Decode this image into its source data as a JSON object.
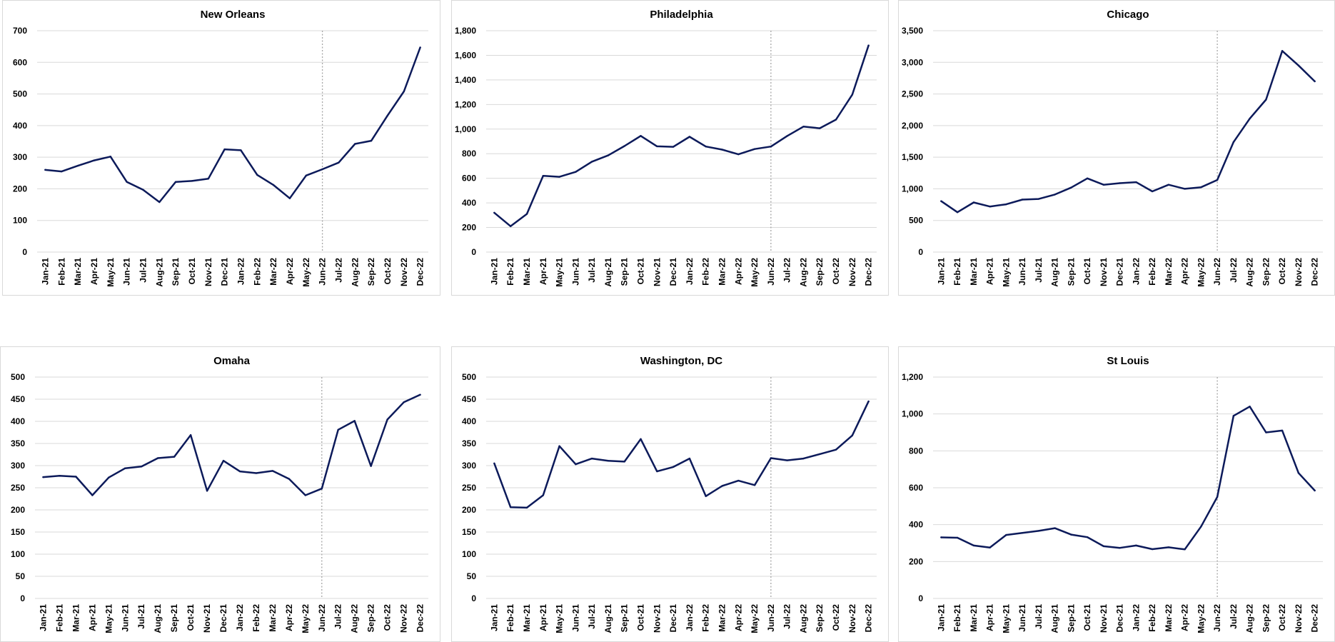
{
  "series_color": "#0c1a5a",
  "x_labels": [
    "Jan-21",
    "Feb-21",
    "Mar-21",
    "Apr-21",
    "May-21",
    "Jun-21",
    "Jul-21",
    "Aug-21",
    "Sep-21",
    "Oct-21",
    "Nov-21",
    "Dec-21",
    "Jan-22",
    "Feb-22",
    "Mar-22",
    "Apr-22",
    "May-22",
    "Jun-22",
    "Jul-22",
    "Aug-22",
    "Sep-22",
    "Oct-22",
    "Nov-22",
    "Dec-22"
  ],
  "chart_data": [
    {
      "type": "line",
      "title": "New Orleans",
      "categories": [
        "Jan-21",
        "Feb-21",
        "Mar-21",
        "Apr-21",
        "May-21",
        "Jun-21",
        "Jul-21",
        "Aug-21",
        "Sep-21",
        "Oct-21",
        "Nov-21",
        "Dec-21",
        "Jan-22",
        "Feb-22",
        "Mar-22",
        "Apr-22",
        "May-22",
        "Jun-22",
        "Jul-22",
        "Aug-22",
        "Sep-22",
        "Oct-22",
        "Nov-22",
        "Dec-22"
      ],
      "values": [
        260,
        255,
        273,
        290,
        302,
        222,
        197,
        158,
        222,
        225,
        232,
        325,
        322,
        244,
        212,
        170,
        242,
        262,
        283,
        342,
        352,
        432,
        508,
        647
      ],
      "ylim": [
        0,
        700
      ],
      "yticks": [
        "0",
        "100",
        "200",
        "300",
        "400",
        "500",
        "600",
        "700"
      ],
      "reference_line_at": "Jun-22",
      "grid": true
    },
    {
      "type": "line",
      "title": "Philadelphia",
      "categories": [
        "Jan-21",
        "Feb-21",
        "Mar-21",
        "Apr-21",
        "May-21",
        "Jun-21",
        "Jul-21",
        "Aug-21",
        "Sep-21",
        "Oct-21",
        "Nov-21",
        "Dec-21",
        "Jan-22",
        "Feb-22",
        "Mar-22",
        "Apr-22",
        "May-22",
        "Jun-22",
        "Jul-22",
        "Aug-22",
        "Sep-22",
        "Oct-22",
        "Nov-22",
        "Dec-22"
      ],
      "values": [
        320,
        210,
        310,
        620,
        612,
        652,
        735,
        786,
        862,
        945,
        860,
        856,
        938,
        858,
        833,
        795,
        838,
        858,
        944,
        1020,
        1007,
        1077,
        1280,
        1680
      ],
      "ylim": [
        0,
        1800
      ],
      "yticks": [
        "0",
        "200",
        "400",
        "600",
        "800",
        "1,000",
        "1,200",
        "1,400",
        "1,600",
        "1,800"
      ],
      "reference_line_at": "Jun-22",
      "grid": true
    },
    {
      "type": "line",
      "title": "Chicago",
      "categories": [
        "Jan-21",
        "Feb-21",
        "Mar-21",
        "Apr-21",
        "May-21",
        "Jun-21",
        "Jul-21",
        "Aug-21",
        "Sep-21",
        "Oct-21",
        "Nov-21",
        "Dec-21",
        "Jan-22",
        "Feb-22",
        "Mar-22",
        "Apr-22",
        "May-22",
        "Jun-22",
        "Jul-22",
        "Aug-22",
        "Sep-22",
        "Oct-22",
        "Nov-22",
        "Dec-22"
      ],
      "values": [
        805,
        630,
        785,
        720,
        755,
        830,
        840,
        910,
        1020,
        1165,
        1065,
        1090,
        1105,
        960,
        1065,
        1000,
        1025,
        1140,
        1740,
        2110,
        2410,
        3180,
        2950,
        2700
      ],
      "ylim": [
        0,
        3500
      ],
      "yticks": [
        "0",
        "500",
        "1,000",
        "1,500",
        "2,000",
        "2,500",
        "3,000",
        "3,500"
      ],
      "reference_line_at": "Jun-22",
      "grid": true
    },
    {
      "type": "line",
      "title": "Omaha",
      "categories": [
        "Jan-21",
        "Feb-21",
        "Mar-21",
        "Apr-21",
        "May-21",
        "Jun-21",
        "Jul-21",
        "Aug-21",
        "Sep-21",
        "Oct-21",
        "Nov-21",
        "Dec-21",
        "Jan-22",
        "Feb-22",
        "Mar-22",
        "Apr-22",
        "May-22",
        "Jun-22",
        "Jul-22",
        "Aug-22",
        "Sep-22",
        "Oct-22",
        "Nov-22",
        "Dec-22"
      ],
      "values": [
        274,
        277,
        275,
        233,
        273,
        294,
        298,
        317,
        320,
        369,
        243,
        311,
        287,
        283,
        288,
        270,
        233,
        248,
        381,
        401,
        299,
        404,
        443,
        460
      ],
      "ylim": [
        0,
        500
      ],
      "yticks": [
        "0",
        "50",
        "100",
        "150",
        "200",
        "250",
        "300",
        "350",
        "400",
        "450",
        "500"
      ],
      "reference_line_at": "Jun-22",
      "grid": true
    },
    {
      "type": "line",
      "title": "Washington, DC",
      "categories": [
        "Jan-21",
        "Feb-21",
        "Mar-21",
        "Apr-21",
        "May-21",
        "Jun-21",
        "Jul-21",
        "Aug-21",
        "Sep-21",
        "Oct-21",
        "Nov-21",
        "Dec-21",
        "Jan-22",
        "Feb-22",
        "Mar-22",
        "Apr-22",
        "May-22",
        "Jun-22",
        "Jul-22",
        "Aug-22",
        "Sep-22",
        "Oct-22",
        "Nov-22",
        "Dec-22"
      ],
      "values": [
        305,
        206,
        205,
        233,
        344,
        303,
        316,
        311,
        309,
        360,
        287,
        297,
        316,
        231,
        254,
        266,
        256,
        317,
        312,
        316,
        326,
        336,
        368,
        445
      ],
      "ylim": [
        0,
        500
      ],
      "yticks": [
        "0",
        "50",
        "100",
        "150",
        "200",
        "250",
        "300",
        "350",
        "400",
        "450",
        "500"
      ],
      "reference_line_at": "Jun-22",
      "grid": true
    },
    {
      "type": "line",
      "title": "St Louis",
      "categories": [
        "Jan-21",
        "Feb-21",
        "Mar-21",
        "Apr-21",
        "May-21",
        "Jun-21",
        "Jul-21",
        "Aug-21",
        "Sep-21",
        "Oct-21",
        "Nov-21",
        "Dec-21",
        "Jan-22",
        "Feb-22",
        "Mar-22",
        "Apr-22",
        "May-22",
        "Jun-22",
        "Jul-22",
        "Aug-22",
        "Sep-22",
        "Oct-22",
        "Nov-22",
        "Dec-22"
      ],
      "values": [
        331,
        329,
        287,
        276,
        344,
        355,
        366,
        381,
        346,
        332,
        283,
        274,
        287,
        267,
        277,
        266,
        390,
        550,
        990,
        1040,
        900,
        910,
        680,
        585
      ],
      "ylim": [
        0,
        1200
      ],
      "yticks": [
        "0",
        "200",
        "400",
        "600",
        "800",
        "1,000",
        "1,200"
      ],
      "reference_line_at": "Jun-22",
      "grid": true
    }
  ]
}
